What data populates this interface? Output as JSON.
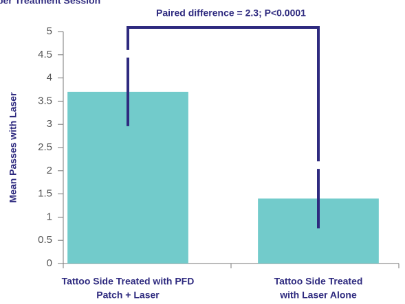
{
  "chart_data": {
    "type": "bar",
    "title": "per Treatment Session",
    "annotation": "Paired difference = 2.3; P<0.0001",
    "ylabel": "Mean Passes with Laser",
    "categories": [
      [
        "Tattoo Side Treated with PFD",
        "Patch + Laser"
      ],
      [
        "Tattoo Side Treated",
        "with Laser Alone"
      ]
    ],
    "values": [
      3.7,
      1.4
    ],
    "errors": [
      0.74,
      0.64
    ],
    "color": "#72cbcb",
    "error_color": "#2e2a7f",
    "ylim": [
      0,
      5
    ],
    "yticks": [
      0,
      0.5,
      1,
      1.5,
      2,
      2.5,
      3,
      3.5,
      4,
      4.5,
      5
    ]
  }
}
